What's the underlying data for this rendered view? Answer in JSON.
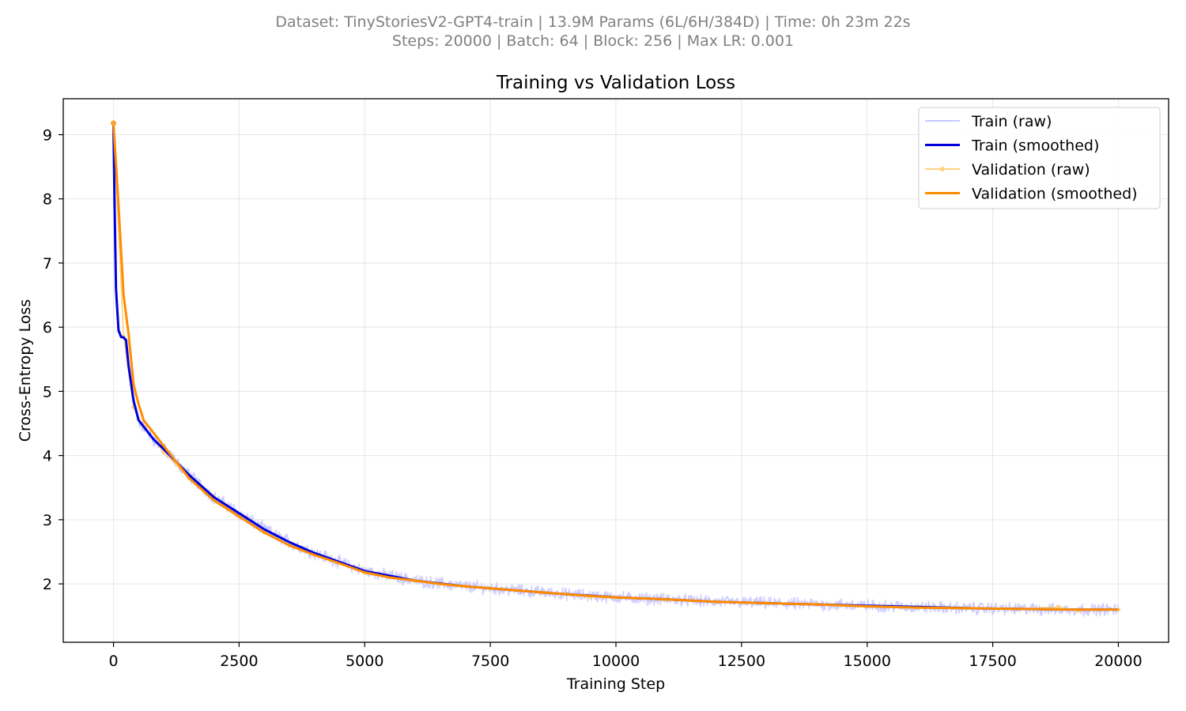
{
  "header": {
    "line1": "Dataset: TinyStoriesV2-GPT4-train | 13.9M Params (6L/6H/384D) | Time: 0h 23m 22s",
    "line2": "Steps: 20000 | Batch: 64 | Block: 256 | Max LR: 0.001"
  },
  "chart_data": {
    "type": "line",
    "title": "Training vs Validation Loss",
    "xlabel": "Training Step",
    "ylabel": "Cross-Entropy Loss",
    "xlim": [
      -1000,
      21000
    ],
    "ylim": [
      1.09,
      9.56
    ],
    "xticks": [
      0,
      2500,
      5000,
      7500,
      10000,
      12500,
      15000,
      17500,
      20000
    ],
    "xtick_labels": [
      "0",
      "2500",
      "5000",
      "7500",
      "10000",
      "12500",
      "15000",
      "17500",
      "20000"
    ],
    "yticks": [
      2,
      3,
      4,
      5,
      6,
      7,
      8,
      9
    ],
    "ytick_labels": [
      "2",
      "3",
      "4",
      "5",
      "6",
      "7",
      "8",
      "9"
    ],
    "grid": true,
    "legend_position": "top-right",
    "series": [
      {
        "name": "Train (raw)",
        "color": "#c8c8ff",
        "style": "raw-noisy",
        "x": [
          0,
          20,
          50,
          100,
          150,
          200,
          250,
          300,
          400,
          500,
          600,
          800,
          1000,
          1500,
          2000,
          2500,
          3000,
          3500,
          4000,
          5000,
          6000,
          7000,
          8000,
          9000,
          10000,
          11000,
          12000,
          13000,
          14000,
          15000,
          16000,
          17000,
          18000,
          19000,
          20000
        ],
        "y": [
          9.15,
          8.0,
          6.6,
          5.95,
          5.85,
          5.84,
          5.8,
          5.4,
          4.85,
          4.55,
          4.45,
          4.25,
          4.1,
          3.7,
          3.35,
          3.1,
          2.85,
          2.65,
          2.48,
          2.2,
          2.05,
          1.96,
          1.9,
          1.84,
          1.79,
          1.76,
          1.72,
          1.7,
          1.68,
          1.66,
          1.64,
          1.62,
          1.61,
          1.6,
          1.6
        ]
      },
      {
        "name": "Train (smoothed)",
        "color": "#0000dd",
        "style": "solid",
        "x": [
          0,
          20,
          50,
          100,
          150,
          200,
          250,
          300,
          400,
          500,
          600,
          800,
          1000,
          1500,
          2000,
          2500,
          3000,
          3500,
          4000,
          5000,
          6000,
          7000,
          8000,
          9000,
          10000,
          11000,
          12000,
          13000,
          14000,
          15000,
          16000,
          17000,
          18000,
          19000,
          20000
        ],
        "y": [
          9.15,
          8.0,
          6.6,
          5.95,
          5.85,
          5.84,
          5.8,
          5.4,
          4.85,
          4.55,
          4.45,
          4.25,
          4.1,
          3.7,
          3.35,
          3.1,
          2.85,
          2.65,
          2.48,
          2.2,
          2.05,
          1.96,
          1.9,
          1.84,
          1.79,
          1.76,
          1.72,
          1.7,
          1.68,
          1.66,
          1.64,
          1.62,
          1.61,
          1.6,
          1.6
        ]
      },
      {
        "name": "Validation (raw)",
        "color": "#ffd280",
        "style": "raw-markers",
        "x": [
          0,
          200,
          400,
          600,
          1000,
          1500,
          2000,
          2500,
          3000,
          3500,
          4000,
          4500,
          5000,
          5500,
          6000,
          6500,
          7000,
          7500,
          8000,
          8500,
          9000,
          9500,
          10000,
          11000,
          12000,
          13000,
          14000,
          15000,
          16000,
          17000,
          18000,
          18800,
          19200,
          19600,
          20000
        ],
        "y": [
          9.18,
          5.85,
          4.75,
          4.45,
          4.05,
          3.65,
          3.35,
          3.05,
          2.8,
          2.6,
          2.45,
          2.32,
          2.17,
          2.1,
          2.05,
          2.0,
          1.97,
          1.93,
          1.9,
          1.86,
          1.84,
          1.8,
          1.78,
          1.75,
          1.72,
          1.7,
          1.68,
          1.65,
          1.63,
          1.62,
          1.61,
          1.64,
          1.58,
          1.6,
          1.6
        ]
      },
      {
        "name": "Validation (smoothed)",
        "color": "#ff8c00",
        "style": "solid",
        "x": [
          0,
          100,
          200,
          300,
          400,
          500,
          600,
          800,
          1000,
          1500,
          2000,
          2500,
          3000,
          3500,
          4000,
          4500,
          5000,
          5500,
          6000,
          6500,
          7000,
          7500,
          8000,
          8500,
          9000,
          9500,
          10000,
          11000,
          12000,
          13000,
          14000,
          15000,
          16000,
          17000,
          18000,
          19000,
          20000
        ],
        "y": [
          9.18,
          7.9,
          6.5,
          5.9,
          5.1,
          4.8,
          4.55,
          4.35,
          4.15,
          3.65,
          3.3,
          3.05,
          2.8,
          2.6,
          2.45,
          2.32,
          2.18,
          2.1,
          2.05,
          2.0,
          1.96,
          1.93,
          1.9,
          1.87,
          1.84,
          1.81,
          1.79,
          1.76,
          1.72,
          1.7,
          1.68,
          1.65,
          1.63,
          1.62,
          1.61,
          1.6,
          1.6
        ]
      }
    ]
  }
}
